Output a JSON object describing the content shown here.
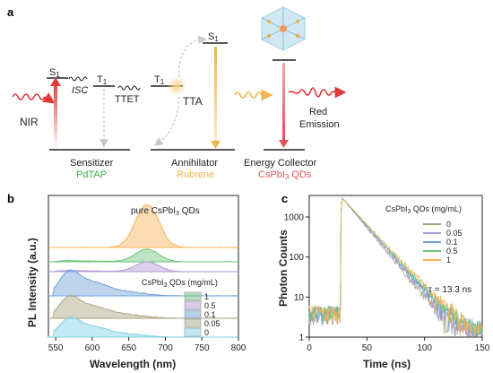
{
  "panels": {
    "a": "a",
    "b": "b",
    "c": "c"
  },
  "colors": {
    "orange": "#f7b25a",
    "green": "#6cc47a",
    "purple": "#b19ad6",
    "blue": "#6f9fd8",
    "khaki": "#a8a37f",
    "cyan": "#7fd0e6",
    "red": "#e03b3b",
    "pdtap": "#3cb04a",
    "rubrene": "#f0b64b",
    "cspbi3": "#e0555a"
  },
  "diagram": {
    "nir_label": "NIR",
    "s1_left": "S",
    "s1_left_sub": "1",
    "isc_label": "ISC",
    "t1_left": "T",
    "t1_left_sub": "1",
    "ttet_label": "TTET",
    "t1_mid": "T",
    "t1_mid_sub": "1",
    "tta_label": "TTA",
    "s1_right": "S",
    "s1_right_sub": "1",
    "red_emission_line1": "Red",
    "red_emission_line2": "Emission",
    "sensitizer_label": "Sensitizer",
    "sensitizer_name": "PdTAP",
    "annihilator_label": "Annihilator",
    "annihilator_name": "Rubrene",
    "collector_label": "Energy Collector",
    "collector_name_pre": "CsPbI",
    "collector_name_sub": "3",
    "collector_name_post": " QDs"
  },
  "chart_data": [
    {
      "type": "area",
      "panel": "b",
      "xlabel": "Wavelength (nm)",
      "ylabel": "PL Intensity (a.u.)",
      "xlim": [
        540,
        800
      ],
      "xticks": [
        550,
        600,
        650,
        700,
        750,
        800
      ],
      "top_label_pre": "pure CsPbI",
      "top_label_sub": "3",
      "top_label_post": " QDs",
      "legend_title_pre": "CsPbI",
      "legend_title_sub": "3",
      "legend_title_post": " QDs (mg/mL)",
      "legend_placement": "bottom-right",
      "series": [
        {
          "name": "1",
          "color_key": "green",
          "peak_nm": 675,
          "peak_rel": 0.55
        },
        {
          "name": "0.5",
          "color_key": "purple",
          "peak_nm": 675,
          "peak_rel": 0.45
        },
        {
          "name": "0.1",
          "color_key": "blue",
          "peak_nm": 570,
          "peak_rel": 0.95
        },
        {
          "name": "0.05",
          "color_key": "khaki",
          "peak_nm": 570,
          "peak_rel": 0.8
        },
        {
          "name": "0",
          "color_key": "cyan",
          "peak_nm": 570,
          "peak_rel": 0.75
        }
      ],
      "top_series": {
        "color_key": "orange",
        "peak_nm": 675,
        "peak_rel": 1.0
      }
    },
    {
      "type": "line",
      "panel": "c",
      "xlabel": "Time (ns)",
      "ylabel": "Photon Counts",
      "xlim": [
        0,
        150
      ],
      "ylim": [
        1,
        3000
      ],
      "yscale": "log",
      "xticks": [
        0,
        50,
        100,
        150
      ],
      "yticks": [
        1,
        10,
        100,
        1000
      ],
      "ytick_labels": [
        "1",
        "10",
        "100",
        "1000"
      ],
      "legend_title_pre": "CsPbI",
      "legend_title_sub": "3",
      "legend_title_post": " QDs (mg/mL)",
      "legend_placement": "top-right",
      "annotation": "τ = 13.3 ns",
      "rise_ns": 27,
      "peak_counts": 3000,
      "tau_ns": 13.3,
      "series": [
        {
          "name": "0",
          "color_key": "khaki"
        },
        {
          "name": "0.05",
          "color_key": "purple"
        },
        {
          "name": "0.1",
          "color_key": "blue"
        },
        {
          "name": "0.5",
          "color_key": "green"
        },
        {
          "name": "1",
          "color_key": "orange"
        }
      ]
    }
  ]
}
